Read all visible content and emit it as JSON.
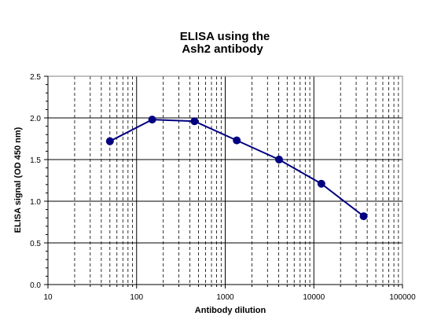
{
  "chart_data": {
    "type": "line",
    "title_lines": [
      "ELISA using the",
      "Ash2 antibody"
    ],
    "xlabel": "Antibody  dilution",
    "ylabel": "ELISA  signal (OD 450 nm)",
    "x_scale": "log",
    "xlim": [
      10,
      100000
    ],
    "ylim": [
      0,
      2.5
    ],
    "x_tick_labels": [
      "10",
      "100",
      "1000",
      "10000",
      "100000"
    ],
    "y_tick_labels": [
      "0.0",
      "0.5",
      "1.0",
      "1.5",
      "2.0",
      "2.5"
    ],
    "grid": true,
    "legend": "none",
    "series": [
      {
        "color": "#000080",
        "x": [
          50,
          150,
          450,
          1350,
          4050,
          12150,
          36450
        ],
        "y": [
          1.72,
          1.98,
          1.96,
          1.73,
          1.5,
          1.21,
          0.82
        ]
      }
    ]
  }
}
